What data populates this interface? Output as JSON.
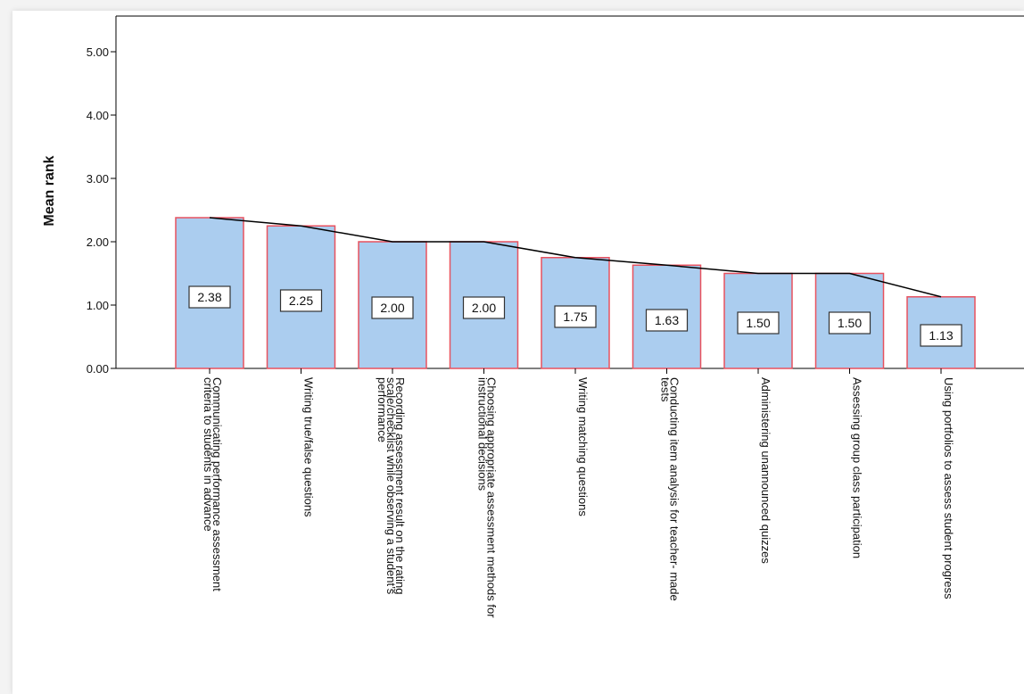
{
  "chart_data": {
    "type": "bar",
    "title": "",
    "xlabel": "",
    "ylabel": "Mean rank",
    "ylim": [
      0,
      5
    ],
    "y_ticks": [
      "0.00",
      "1.00",
      "2.00",
      "3.00",
      "4.00",
      "5.00"
    ],
    "categories": [
      [
        "Communicating performance assessment",
        "criteria to students in advance"
      ],
      [
        "Writing true/false questions"
      ],
      [
        "Recording assessment result on the rating",
        "scale/checklist while observing a student’s",
        "performance"
      ],
      [
        "Choosing appropriate assessment methods for",
        "instructional decisions"
      ],
      [
        "Writing matching questions"
      ],
      [
        "Conducting item analysis for teacher- made",
        "tests"
      ],
      [
        "Administering unannounced quizzes"
      ],
      [
        "Assessing group class participation"
      ],
      [
        "Using portfolios to assess student progress"
      ]
    ],
    "values": [
      2.38,
      2.25,
      2.0,
      2.0,
      1.75,
      1.63,
      1.5,
      1.5,
      1.13
    ],
    "data_labels": [
      "2.38",
      "2.25",
      "2.00",
      "2.00",
      "1.75",
      "1.63",
      "1.50",
      "1.50",
      "1.13"
    ],
    "has_trend_line": true,
    "grid": false,
    "colors": {
      "bar_fill": "#abcdef",
      "bar_edge": "#e8525f",
      "line": "#000000",
      "axis": "#000000"
    }
  }
}
